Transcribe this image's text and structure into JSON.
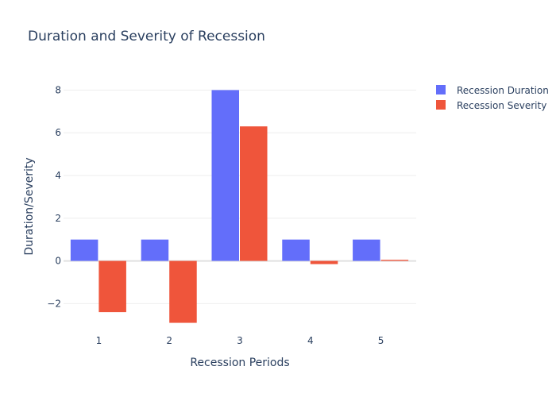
{
  "chart_data": {
    "type": "bar",
    "title": "Duration and Severity of Recession",
    "xlabel": "Recession Periods",
    "ylabel": "Duration/Severity",
    "categories": [
      "1",
      "2",
      "3",
      "4",
      "5"
    ],
    "series": [
      {
        "name": "Recession Duration",
        "color": "#636efa",
        "values": [
          1,
          1,
          8,
          1,
          1
        ]
      },
      {
        "name": "Recession Severity",
        "color": "#ef553b",
        "values": [
          -2.4,
          -2.9,
          6.3,
          -0.15,
          0.05
        ]
      }
    ],
    "ylim": [
      -3.4,
      8.5
    ],
    "yticks": [
      -2,
      0,
      2,
      4,
      6,
      8
    ],
    "ytick_labels": [
      "−2",
      "0",
      "2",
      "4",
      "6",
      "8"
    ],
    "grid": true,
    "legend_position": "top-right"
  }
}
